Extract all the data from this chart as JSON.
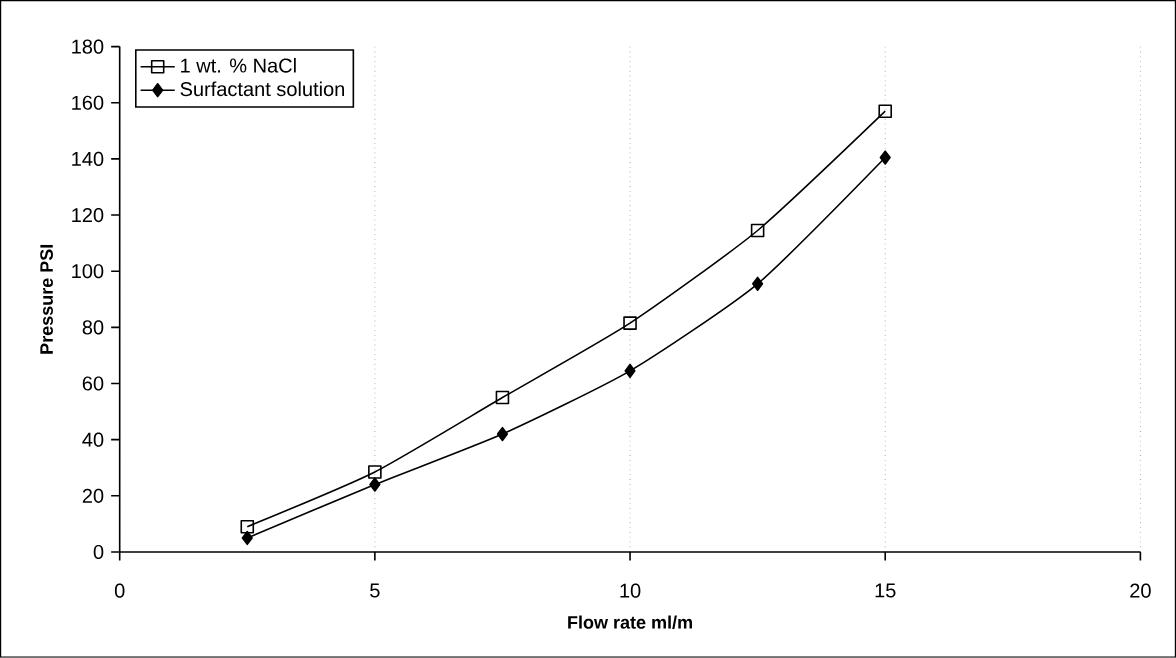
{
  "chart_data": {
    "type": "line",
    "xlabel": "Flow rate ml/m",
    "ylabel": "Pressure PSI",
    "xlim": [
      0,
      20
    ],
    "xticks": [
      0,
      5,
      10,
      15,
      20
    ],
    "ylim": [
      0,
      180
    ],
    "yticks": [
      0,
      20,
      40,
      60,
      80,
      100,
      120,
      140,
      160,
      180
    ],
    "grid": "x",
    "legend": "top left",
    "series": [
      {
        "name": "1 wt. % NaCl",
        "color": "#000000",
        "marker": "square",
        "x": [
          2.5,
          5,
          7.5,
          10,
          12.5,
          15
        ],
        "values": [
          9,
          28.5,
          55,
          81.5,
          114.5,
          157
        ]
      },
      {
        "name": "Surfactant solution",
        "color": "#000000",
        "marker": "diamond",
        "x": [
          2.5,
          5,
          7.5,
          10,
          12.5,
          15
        ],
        "values": [
          5,
          24,
          42,
          64.5,
          95.5,
          140.5
        ]
      }
    ]
  }
}
